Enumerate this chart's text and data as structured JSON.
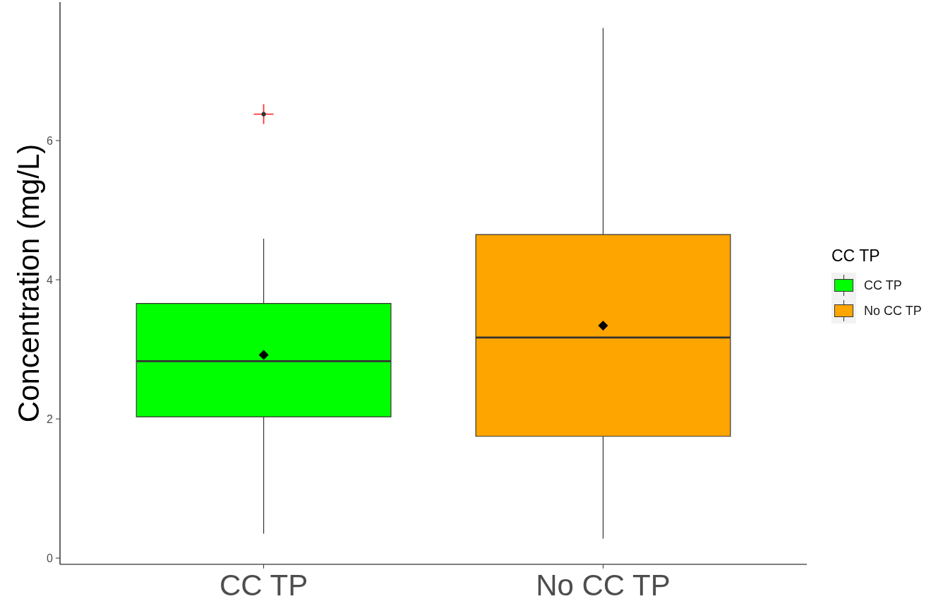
{
  "chart_data": {
    "type": "box",
    "categories": [
      "CC TP",
      "No CC TP"
    ],
    "series": [
      {
        "name": "CC TP",
        "color": "#00ff00",
        "boxes": [
          {
            "low": 0.35,
            "q1": 2.03,
            "median": 2.83,
            "q3": 3.66,
            "high": 4.59,
            "mean": 2.92,
            "outliers": [
              6.38
            ]
          },
          null
        ]
      },
      {
        "name": "No CC TP",
        "color": "#ffa500",
        "boxes": [
          null,
          {
            "low": 0.28,
            "q1": 1.75,
            "median": 3.17,
            "q3": 4.65,
            "high": 7.62,
            "mean": 3.34
          }
        ]
      }
    ],
    "ylabel": "Concentration (mg/L)",
    "ylim": [
      -0.09,
      7.99
    ],
    "yticks": [
      0,
      2,
      4,
      6
    ],
    "legend": "right",
    "legend_title": "CC TP"
  }
}
